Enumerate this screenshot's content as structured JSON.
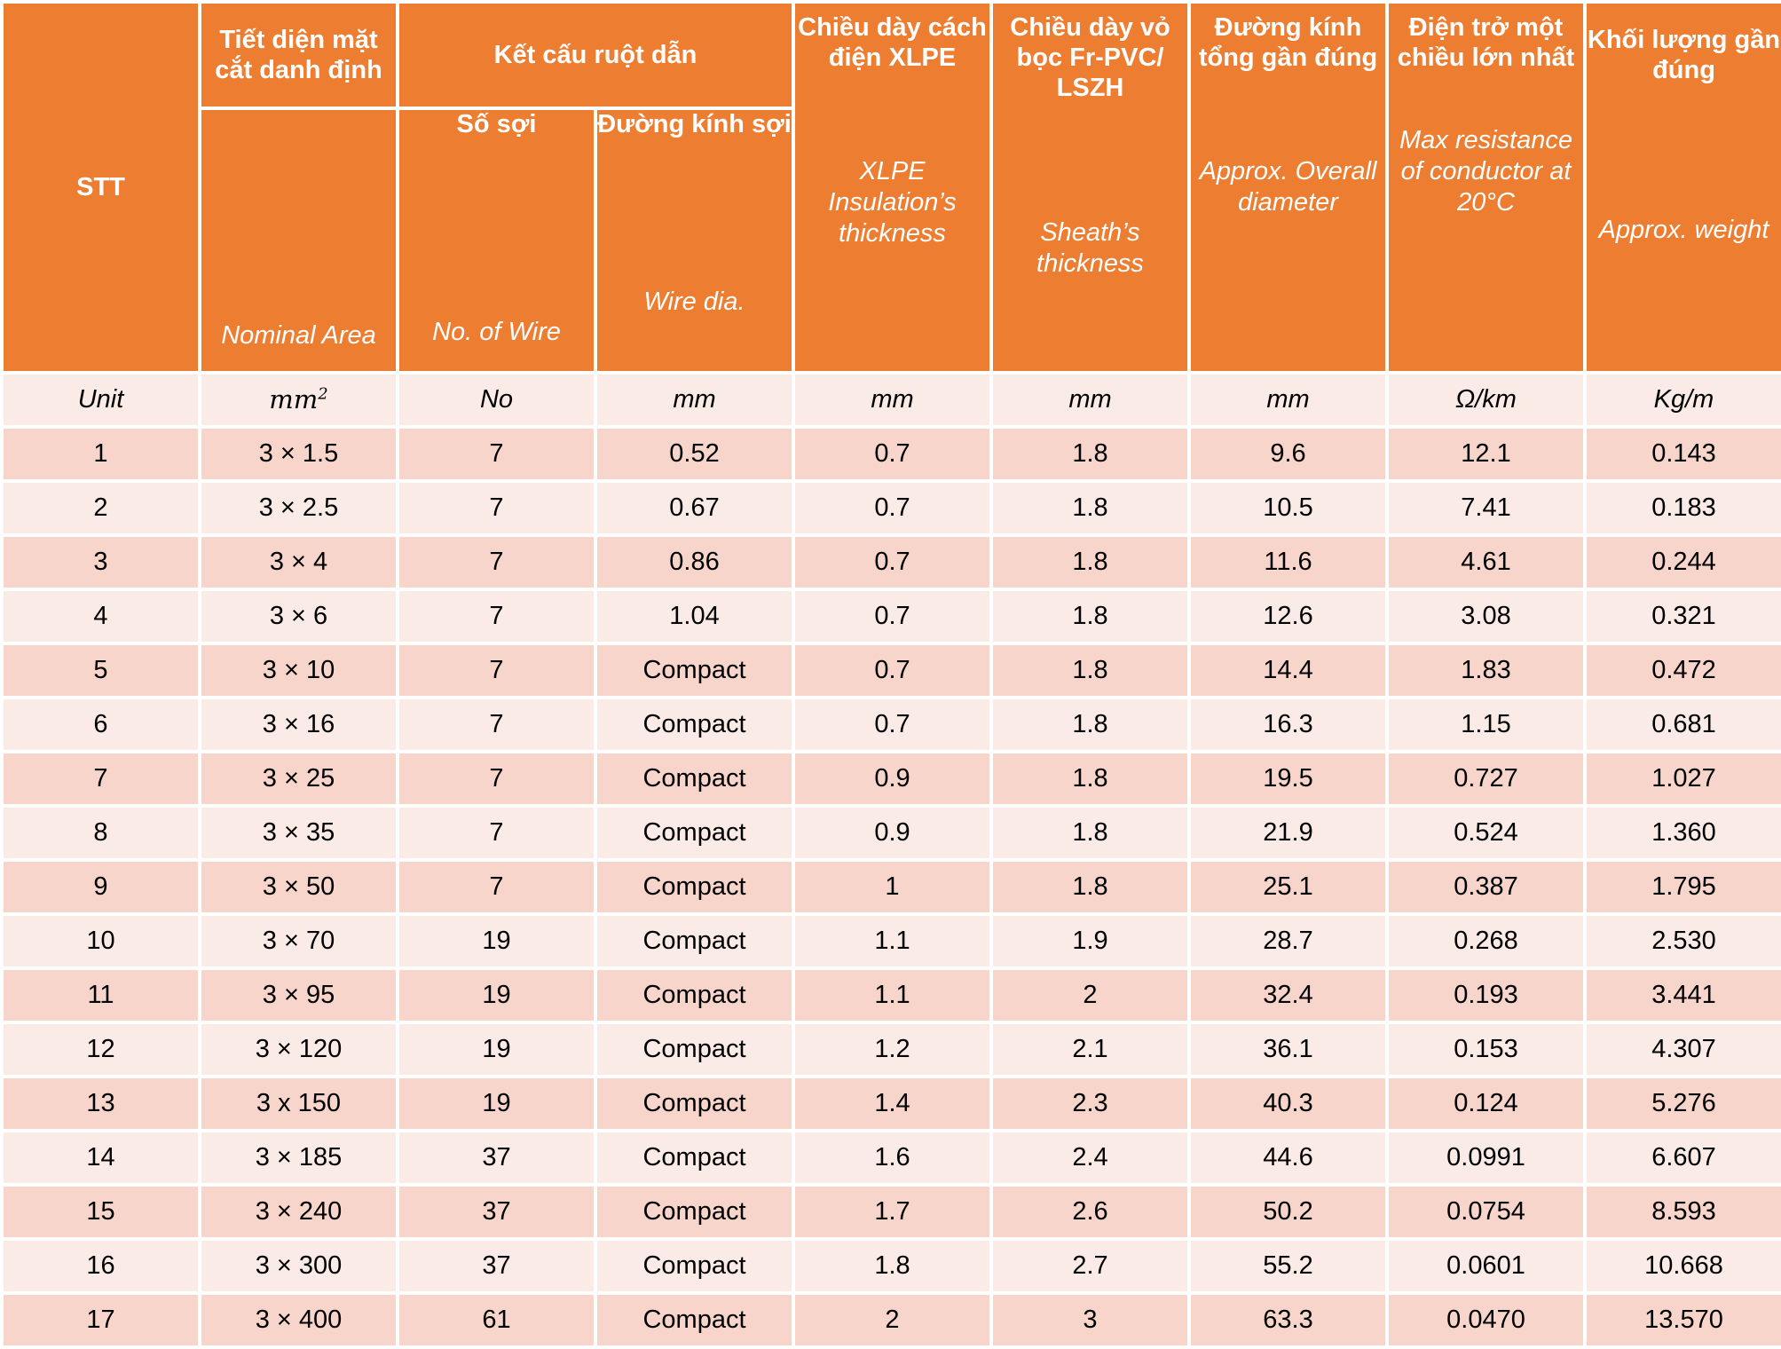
{
  "header": {
    "stt": "STT",
    "area_vn": "Tiết diện mặt cắt danh định",
    "area_en": "Nominal Area",
    "conductor_vn": "Kết cấu ruột dẫn",
    "wire_no_vn": "Số sợi",
    "wire_no_en": "No. of Wire",
    "wire_dia_vn": "Đường kính sợi",
    "wire_dia_en": "Wire dia.",
    "insulation_vn": "Chiều dày cách điện XLPE",
    "insulation_en": "XLPE Insulation’s thickness",
    "sheath_vn": "Chiều dày vỏ bọc Fr-PVC/ LSZH",
    "sheath_en": "Sheath’s thickness",
    "diameter_vn": "Đường kính tổng gần đúng",
    "diameter_en": "Approx. Overall diameter",
    "resistance_vn": "Điện trở một chiều lớn nhất",
    "resistance_en": "Max resistance of conductor at 20°C",
    "weight_vn": "Khối lượng gần đúng",
    "weight_en": "Approx. weight"
  },
  "units": {
    "stt": "Unit",
    "area": "mm",
    "area_sup": "2",
    "wire_no": "No",
    "wire_dia": "mm",
    "insulation": "mm",
    "sheath": "mm",
    "diameter": "mm",
    "resistance": "Ω/km",
    "weight": "Kg/m"
  },
  "rows": [
    {
      "stt": "1",
      "area": "3 × 1.5",
      "wires": "7",
      "dia": "0.52",
      "ins": "0.7",
      "sheath": "1.8",
      "overall": "9.6",
      "res": "12.1",
      "weight": "0.143"
    },
    {
      "stt": "2",
      "area": "3 × 2.5",
      "wires": "7",
      "dia": "0.67",
      "ins": "0.7",
      "sheath": "1.8",
      "overall": "10.5",
      "res": "7.41",
      "weight": "0.183"
    },
    {
      "stt": "3",
      "area": "3 × 4",
      "wires": "7",
      "dia": "0.86",
      "ins": "0.7",
      "sheath": "1.8",
      "overall": "11.6",
      "res": "4.61",
      "weight": "0.244"
    },
    {
      "stt": "4",
      "area": "3 × 6",
      "wires": "7",
      "dia": "1.04",
      "ins": "0.7",
      "sheath": "1.8",
      "overall": "12.6",
      "res": "3.08",
      "weight": "0.321"
    },
    {
      "stt": "5",
      "area": "3 × 10",
      "wires": "7",
      "dia": "Compact",
      "ins": "0.7",
      "sheath": "1.8",
      "overall": "14.4",
      "res": "1.83",
      "weight": "0.472"
    },
    {
      "stt": "6",
      "area": "3 × 16",
      "wires": "7",
      "dia": "Compact",
      "ins": "0.7",
      "sheath": "1.8",
      "overall": "16.3",
      "res": "1.15",
      "weight": "0.681"
    },
    {
      "stt": "7",
      "area": "3 × 25",
      "wires": "7",
      "dia": "Compact",
      "ins": "0.9",
      "sheath": "1.8",
      "overall": "19.5",
      "res": "0.727",
      "weight": "1.027"
    },
    {
      "stt": "8",
      "area": "3 × 35",
      "wires": "7",
      "dia": "Compact",
      "ins": "0.9",
      "sheath": "1.8",
      "overall": "21.9",
      "res": "0.524",
      "weight": "1.360"
    },
    {
      "stt": "9",
      "area": "3 × 50",
      "wires": "7",
      "dia": "Compact",
      "ins": "1",
      "sheath": "1.8",
      "overall": "25.1",
      "res": "0.387",
      "weight": "1.795"
    },
    {
      "stt": "10",
      "area": "3 × 70",
      "wires": "19",
      "dia": "Compact",
      "ins": "1.1",
      "sheath": "1.9",
      "overall": "28.7",
      "res": "0.268",
      "weight": "2.530"
    },
    {
      "stt": "11",
      "area": "3 × 95",
      "wires": "19",
      "dia": "Compact",
      "ins": "1.1",
      "sheath": "2",
      "overall": "32.4",
      "res": "0.193",
      "weight": "3.441"
    },
    {
      "stt": "12",
      "area": "3 × 120",
      "wires": "19",
      "dia": "Compact",
      "ins": "1.2",
      "sheath": "2.1",
      "overall": "36.1",
      "res": "0.153",
      "weight": "4.307"
    },
    {
      "stt": "13",
      "area": "3 x 150",
      "wires": "19",
      "dia": "Compact",
      "ins": "1.4",
      "sheath": "2.3",
      "overall": "40.3",
      "res": "0.124",
      "weight": "5.276"
    },
    {
      "stt": "14",
      "area": "3 × 185",
      "wires": "37",
      "dia": "Compact",
      "ins": "1.6",
      "sheath": "2.4",
      "overall": "44.6",
      "res": "0.0991",
      "weight": "6.607"
    },
    {
      "stt": "15",
      "area": "3 × 240",
      "wires": "37",
      "dia": "Compact",
      "ins": "1.7",
      "sheath": "2.6",
      "overall": "50.2",
      "res": "0.0754",
      "weight": "8.593"
    },
    {
      "stt": "16",
      "area": "3 × 300",
      "wires": "37",
      "dia": "Compact",
      "ins": "1.8",
      "sheath": "2.7",
      "overall": "55.2",
      "res": "0.0601",
      "weight": "10.668"
    },
    {
      "stt": "17",
      "area": "3 × 400",
      "wires": "61",
      "dia": "Compact",
      "ins": "2",
      "sheath": "3",
      "overall": "63.3",
      "res": "0.0470",
      "weight": "13.570"
    }
  ],
  "colors": {
    "header": "#ED7D31",
    "row_dark": "#F8D5CB",
    "row_light": "#FBEBE6"
  }
}
